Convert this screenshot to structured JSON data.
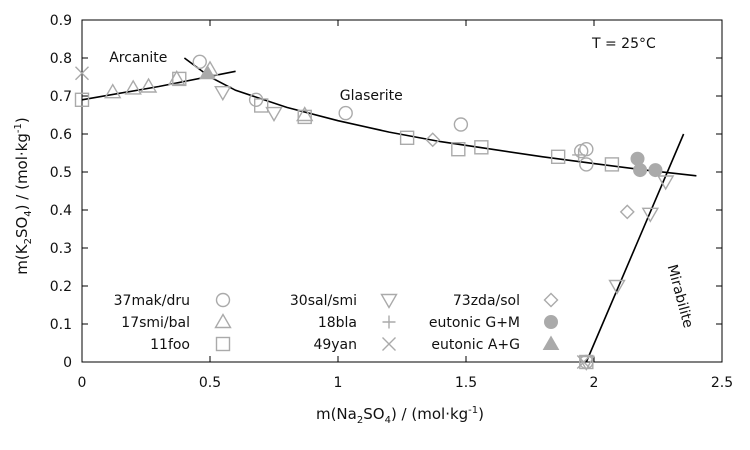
{
  "chart_data": {
    "type": "scatter",
    "temperature_label": "T = 25°C",
    "xlabel": {
      "pre": "m(Na",
      "sub1": "2",
      "mid": "SO",
      "sub2": "4",
      "post": ") / (mol·kg",
      "sup": "-1",
      "end": ")"
    },
    "ylabel": {
      "pre": "m(K",
      "sub1": "2",
      "mid": "SO",
      "sub2": "4",
      "post": ") / (mol·kg",
      "sup": "-1",
      "end": ")"
    },
    "xlim": [
      0,
      2.5
    ],
    "ylim": [
      0,
      0.9
    ],
    "xticks": [
      0,
      0.5,
      1,
      1.5,
      2,
      2.5
    ],
    "xtick_labels": [
      "0",
      "0.5",
      "1",
      "1.5",
      "2",
      "2.5"
    ],
    "yticks": [
      0,
      0.1,
      0.2,
      0.3,
      0.4,
      0.5,
      0.6,
      0.7,
      0.8,
      0.9
    ],
    "ytick_labels": [
      "0",
      "0.1",
      "0.2",
      "0.3",
      "0.4",
      "0.5",
      "0.6",
      "0.7",
      "0.8",
      "0.9"
    ],
    "grid": false,
    "legend_position": "bottom",
    "colors": {
      "marker": "#aaaaaa",
      "curve": "#000000",
      "axes": "#000000"
    },
    "annotations": [
      {
        "text": "Arcanite",
        "x": 0.22,
        "y": 0.79
      },
      {
        "text": "Glaserite",
        "x": 1.13,
        "y": 0.69
      },
      {
        "text": "Mirabilite",
        "x": 2.32,
        "y": 0.17,
        "rotate": 75
      }
    ],
    "curves": [
      {
        "name": "Arcanite",
        "points": [
          [
            0,
            0.69
          ],
          [
            0.3,
            0.725
          ],
          [
            0.6,
            0.765
          ]
        ]
      },
      {
        "name": "Glaserite",
        "points": [
          [
            0.4,
            0.8
          ],
          [
            0.5,
            0.75
          ],
          [
            0.6,
            0.715
          ],
          [
            0.8,
            0.67
          ],
          [
            1.0,
            0.635
          ],
          [
            1.2,
            0.605
          ],
          [
            1.4,
            0.58
          ],
          [
            1.6,
            0.56
          ],
          [
            1.8,
            0.54
          ],
          [
            2.0,
            0.522
          ],
          [
            2.2,
            0.505
          ],
          [
            2.4,
            0.49
          ]
        ]
      },
      {
        "name": "Mirabilite",
        "points": [
          [
            1.97,
            0.0
          ],
          [
            2.35,
            0.6
          ]
        ]
      }
    ],
    "series": [
      {
        "name": "37mak/dru",
        "marker": "circle",
        "points": [
          [
            0.46,
            0.79
          ],
          [
            0.68,
            0.69
          ],
          [
            1.03,
            0.655
          ],
          [
            1.48,
            0.625
          ],
          [
            1.95,
            0.555
          ],
          [
            1.97,
            0.56
          ],
          [
            1.97,
            0.52
          ],
          [
            1.97,
            0.0
          ]
        ]
      },
      {
        "name": "30sal/smi",
        "marker": "tri-down",
        "points": [
          [
            0.55,
            0.71
          ],
          [
            0.75,
            0.655
          ],
          [
            2.09,
            0.2
          ],
          [
            2.22,
            0.39
          ],
          [
            2.28,
            0.475
          ],
          [
            1.97,
            0.0
          ]
        ]
      },
      {
        "name": "73zda/sol",
        "marker": "diamond",
        "points": [
          [
            1.37,
            0.585
          ],
          [
            2.13,
            0.395
          ]
        ]
      },
      {
        "name": "17smi/bal",
        "marker": "tri-up",
        "points": [
          [
            0.12,
            0.71
          ],
          [
            0.2,
            0.72
          ],
          [
            0.26,
            0.725
          ],
          [
            0.37,
            0.745
          ],
          [
            0.5,
            0.77
          ],
          [
            0.87,
            0.65
          ]
        ]
      },
      {
        "name": "18bla",
        "marker": "plus",
        "points": [
          [
            1.94,
            0.545
          ]
        ]
      },
      {
        "name": "eutonic G+M",
        "marker": "filled-circle",
        "points": [
          [
            2.17,
            0.535
          ],
          [
            2.18,
            0.505
          ],
          [
            2.24,
            0.505
          ]
        ]
      },
      {
        "name": "11foo",
        "marker": "square",
        "points": [
          [
            0.0,
            0.69
          ],
          [
            0.38,
            0.745
          ],
          [
            0.7,
            0.675
          ],
          [
            0.87,
            0.645
          ],
          [
            1.27,
            0.59
          ],
          [
            1.47,
            0.56
          ],
          [
            1.56,
            0.565
          ],
          [
            1.86,
            0.54
          ],
          [
            2.07,
            0.52
          ],
          [
            1.97,
            0.0
          ]
        ]
      },
      {
        "name": "49yan",
        "marker": "cross",
        "points": [
          [
            0.0,
            0.76
          ],
          [
            1.96,
            0.0
          ]
        ]
      },
      {
        "name": "eutonic A+G",
        "marker": "filled-tri-up",
        "points": [
          [
            0.49,
            0.76
          ]
        ]
      }
    ],
    "legend_columns": [
      [
        "37mak/dru",
        "17smi/bal",
        "11foo"
      ],
      [
        "30sal/smi",
        "18bla",
        "49yan"
      ],
      [
        "73zda/sol",
        "eutonic G+M",
        "eutonic A+G"
      ]
    ]
  }
}
